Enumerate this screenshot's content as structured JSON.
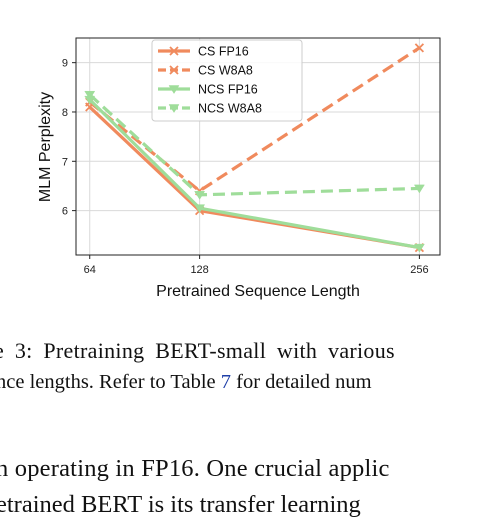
{
  "chart_data": {
    "type": "line",
    "xlabel": "Pretrained Sequence Length",
    "ylabel": "MLM Perplexity",
    "x": [
      64,
      128,
      256
    ],
    "x_ticks": [
      "64",
      "128",
      "256"
    ],
    "y_ticks": [
      6,
      7,
      8,
      9
    ],
    "xlim": [
      56,
      268
    ],
    "ylim": [
      5.1,
      9.5
    ],
    "grid": true,
    "legend_position": "top-center",
    "series": [
      {
        "name": "CS FP16",
        "values": [
          8.1,
          6.0,
          5.25
        ],
        "color": "#f08a5d",
        "dash": "solid",
        "marker": "x"
      },
      {
        "name": "CS W8A8",
        "values": [
          8.2,
          6.4,
          9.3
        ],
        "color": "#f08a5d",
        "dash": "dashed",
        "marker": "x"
      },
      {
        "name": "NCS FP16",
        "values": [
          8.25,
          6.05,
          5.25
        ],
        "color": "#9fdd9a",
        "dash": "solid",
        "marker": "triangle-down"
      },
      {
        "name": "NCS W8A8",
        "values": [
          8.35,
          6.32,
          6.45
        ],
        "color": "#9fdd9a",
        "dash": "dashed",
        "marker": "triangle-down"
      }
    ]
  },
  "caption": {
    "line1": "e 3:  Pretraining  BERT-small  with  various",
    "line2_before": "nce lengths. Refer to Table ",
    "table_ref": "7",
    "line2_after": " for detailed num"
  },
  "body_text": {
    "line1": "n operating in FP16.  One crucial applic",
    "line2": "etrained BERT is its transfer learning"
  }
}
